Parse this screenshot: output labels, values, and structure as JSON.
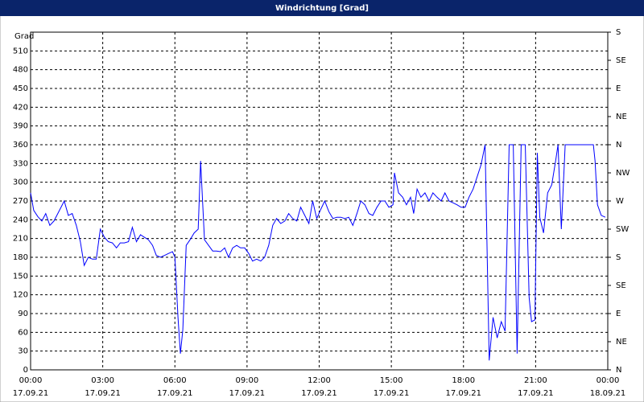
{
  "chart_data": {
    "type": "line",
    "title": "Windrichtung [Grad]",
    "y_label": "Grad",
    "x": [
      0,
      0.13,
      0.3,
      0.47,
      0.63,
      0.8,
      0.97,
      1.13,
      1.4,
      1.57,
      1.73,
      1.9,
      2.07,
      2.23,
      2.4,
      2.57,
      2.73,
      2.9,
      3.07,
      3.23,
      3.4,
      3.57,
      3.73,
      3.9,
      4.07,
      4.23,
      4.4,
      4.57,
      4.73,
      4.9,
      5.07,
      5.23,
      5.4,
      5.57,
      5.73,
      5.9,
      6,
      6.13,
      6.23,
      6.33,
      6.47,
      6.63,
      6.8,
      6.97,
      7.07,
      7.23,
      7.4,
      7.57,
      7.73,
      7.9,
      8.07,
      8.23,
      8.4,
      8.57,
      8.73,
      8.9,
      9.07,
      9.23,
      9.4,
      9.57,
      9.73,
      9.9,
      10.07,
      10.23,
      10.4,
      10.57,
      10.73,
      10.9,
      11.07,
      11.23,
      11.4,
      11.57,
      11.73,
      11.9,
      12.07,
      12.23,
      12.4,
      12.57,
      12.73,
      12.9,
      13.07,
      13.23,
      13.4,
      13.57,
      13.73,
      13.9,
      14.07,
      14.23,
      14.4,
      14.57,
      14.73,
      14.9,
      15.07,
      15.13,
      15.3,
      15.47,
      15.63,
      15.8,
      15.93,
      16.07,
      16.23,
      16.4,
      16.57,
      16.73,
      16.9,
      17.07,
      17.23,
      17.4,
      17.57,
      17.73,
      17.9,
      18.07,
      18.23,
      18.4,
      18.57,
      18.73,
      18.9,
      19.07,
      19.23,
      19.4,
      19.57,
      19.73,
      19.9,
      20.07,
      20.23,
      20.4,
      20.57,
      20.73,
      20.83,
      20.97,
      21.07,
      21.17,
      21.33,
      21.5,
      21.67,
      21.83,
      21.93,
      22.07,
      22.23,
      22.4,
      22.73,
      23.07,
      23.4,
      23.47,
      23.57,
      23.73,
      23.9
    ],
    "series": [
      {
        "color": "#0000ff",
        "values": [
          283,
          255,
          245,
          238,
          250,
          231,
          238,
          250,
          270,
          247,
          250,
          231,
          205,
          167,
          180,
          177,
          177,
          225,
          212,
          205,
          203,
          195,
          203,
          203,
          205,
          228,
          205,
          216,
          212,
          208,
          199,
          183,
          180,
          183,
          186,
          189,
          180,
          84,
          26,
          64,
          199,
          208,
          219,
          225,
          334,
          208,
          199,
          190,
          190,
          189,
          195,
          180,
          195,
          199,
          195,
          195,
          186,
          174,
          177,
          174,
          180,
          199,
          231,
          242,
          234,
          238,
          250,
          242,
          238,
          260,
          247,
          234,
          270,
          242,
          257,
          270,
          253,
          242,
          244,
          244,
          242,
          244,
          231,
          250,
          270,
          264,
          250,
          247,
          260,
          270,
          270,
          260,
          264,
          315,
          283,
          276,
          264,
          276,
          250,
          289,
          276,
          283,
          270,
          283,
          276,
          270,
          283,
          270,
          267,
          264,
          260,
          260,
          276,
          289,
          309,
          328,
          360,
          15,
          84,
          51,
          77,
          62,
          360,
          360,
          26,
          360,
          360,
          116,
          77,
          80,
          347,
          244,
          219,
          283,
          296,
          334,
          360,
          225,
          360,
          360,
          360,
          360,
          360,
          334,
          264,
          247,
          244
        ]
      }
    ],
    "xlim": [
      0,
      24
    ],
    "xticks": [
      {
        "value": 0,
        "label": "00:00"
      },
      {
        "value": 3,
        "label": "03:00"
      },
      {
        "value": 6,
        "label": "06:00"
      },
      {
        "value": 9,
        "label": "09:00"
      },
      {
        "value": 12,
        "label": "12:00"
      },
      {
        "value": 15,
        "label": "15:00"
      },
      {
        "value": 18,
        "label": "18:00"
      },
      {
        "value": 21,
        "label": "21:00"
      },
      {
        "value": 24,
        "label": "00:00"
      }
    ],
    "xtick_dates": [
      "17.09.21",
      "17.09.21",
      "17.09.21",
      "17.09.21",
      "17.09.21",
      "17.09.21",
      "17.09.21",
      "17.09.21",
      "18.09.21"
    ],
    "ylim": [
      0,
      540
    ],
    "yticks": [
      0,
      30,
      60,
      90,
      120,
      150,
      180,
      210,
      240,
      270,
      300,
      330,
      360,
      390,
      420,
      450,
      480,
      510
    ],
    "y2lim": [
      0,
      540
    ],
    "y2ticks": [
      {
        "value": 0,
        "label": "N"
      },
      {
        "value": 45,
        "label": "NE"
      },
      {
        "value": 90,
        "label": "E"
      },
      {
        "value": 135,
        "label": "SE"
      },
      {
        "value": 180,
        "label": "S"
      },
      {
        "value": 225,
        "label": "SW"
      },
      {
        "value": 270,
        "label": "W"
      },
      {
        "value": 315,
        "label": "NW"
      },
      {
        "value": 360,
        "label": "N"
      },
      {
        "value": 405,
        "label": "NE"
      },
      {
        "value": 450,
        "label": "E"
      },
      {
        "value": 495,
        "label": "SE"
      },
      {
        "value": 540,
        "label": "S"
      }
    ],
    "grid": true
  }
}
